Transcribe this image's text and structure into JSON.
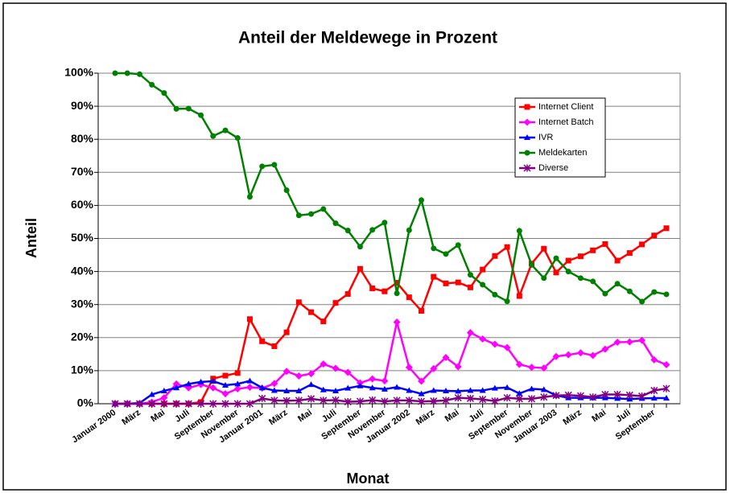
{
  "chart_data": {
    "type": "line",
    "title": "Anteil der Meldewege in Prozent",
    "x_label": "Monat",
    "y_label": "Anteil",
    "categories": [
      "Januar 2000",
      null,
      "März",
      null,
      "Mai",
      null,
      "Juli",
      null,
      "September",
      null,
      "November",
      null,
      "Januar 2001",
      null,
      "März",
      null,
      "Mai",
      null,
      "Juli",
      null,
      "September",
      null,
      "November",
      null,
      "Januar 2002",
      null,
      "März",
      null,
      "Mai",
      null,
      "Juli",
      null,
      "September",
      null,
      "November",
      null,
      "Januar 2003",
      null,
      "März",
      null,
      "Mai",
      null,
      "Juli",
      null,
      "September",
      null
    ],
    "ylim": [
      0,
      100
    ],
    "yticks": [
      {
        "value": 0,
        "label": "0%"
      },
      {
        "value": 10,
        "label": "10%"
      },
      {
        "value": 20,
        "label": "20%"
      },
      {
        "value": 30,
        "label": "30%"
      },
      {
        "value": 40,
        "label": "40%"
      },
      {
        "value": 50,
        "label": "50%"
      },
      {
        "value": 60,
        "label": "60%"
      },
      {
        "value": 70,
        "label": "70%"
      },
      {
        "value": 80,
        "label": "80%"
      },
      {
        "value": 90,
        "label": "90%"
      },
      {
        "value": 100,
        "label": "100%"
      }
    ],
    "grid": true,
    "legend": "upper right",
    "series": [
      {
        "name": "Internet Client",
        "color": "#ff0000",
        "marker": "square",
        "values": [
          0,
          0,
          0,
          0,
          0,
          0,
          0,
          0.5,
          7.6,
          8.5,
          9.3,
          25.6,
          18.9,
          17.4,
          21.6,
          30.7,
          27.7,
          24.9,
          30.5,
          33.2,
          40.8,
          34.9,
          34,
          36.6,
          32.2,
          28.1,
          38.4,
          36.4,
          36.7,
          35.2,
          40.6,
          44.7,
          47.4,
          32.6,
          42.4,
          46.9,
          39.7,
          43.3,
          44.6,
          46.4,
          48.3,
          43.3,
          45.6,
          48.2,
          50.9,
          53.1
        ]
      },
      {
        "name": "Internet Batch",
        "color": "#ff00ff",
        "marker": "diamond",
        "values": [
          0,
          0,
          0,
          0.5,
          1.8,
          6,
          4.8,
          5.8,
          4.8,
          3,
          4.5,
          5,
          4.7,
          6.1,
          9.8,
          8.4,
          9.1,
          12,
          10.7,
          9.5,
          6.3,
          7.5,
          6.9,
          24.7,
          11,
          6.8,
          10.6,
          14,
          11.2,
          21.5,
          19.6,
          18,
          17,
          11.9,
          11,
          10.8,
          14.3,
          14.8,
          15.4,
          14.6,
          16.5,
          18.6,
          18.7,
          19.2,
          13.3,
          11.8
        ]
      },
      {
        "name": "IVR",
        "color": "#0000ff",
        "marker": "triangle",
        "values": [
          0,
          0,
          0.2,
          2.8,
          3.9,
          4.8,
          6,
          6.6,
          6.8,
          5.6,
          6,
          6.9,
          4.8,
          4,
          3.9,
          3.9,
          5.8,
          4.2,
          3.9,
          4.7,
          5.4,
          4.8,
          4.4,
          5,
          4,
          3,
          4,
          3.9,
          3.8,
          4,
          4,
          4.7,
          4.9,
          3.1,
          4.5,
          4.3,
          2.5,
          1.8,
          1.8,
          1.8,
          1.8,
          1.6,
          1.4,
          1.6,
          1.7,
          1.7
        ]
      },
      {
        "name": "Meldekarten",
        "color": "#008000",
        "marker": "circle",
        "values": [
          100,
          100,
          99.7,
          96.5,
          94,
          89.2,
          89.3,
          87.3,
          81,
          82.7,
          80.4,
          62.6,
          71.8,
          72.3,
          64.6,
          57,
          57.4,
          58.9,
          54.6,
          52.4,
          47.5,
          52.6,
          54.8,
          33.4,
          52.5,
          61.6,
          47,
          45.3,
          48,
          39,
          36,
          33,
          31,
          52.3,
          42,
          38,
          44,
          40,
          38,
          37,
          33.3,
          36.3,
          34,
          30.9,
          33.8,
          33.1
        ]
      },
      {
        "name": "Diverse",
        "color": "#800080",
        "marker": "star",
        "values": [
          0,
          0,
          0,
          0,
          0,
          0,
          0,
          0,
          0,
          0,
          0,
          0,
          1.6,
          1,
          0.9,
          1,
          1.5,
          1,
          1.1,
          0.6,
          0.7,
          1.1,
          0.7,
          1,
          1,
          0.7,
          0.8,
          1,
          1.8,
          1.6,
          1.3,
          0.8,
          1.8,
          1.5,
          1.5,
          2,
          2.5,
          2.6,
          2.4,
          2,
          2.8,
          2.8,
          2.6,
          2.3,
          4,
          4.6
        ]
      }
    ]
  }
}
